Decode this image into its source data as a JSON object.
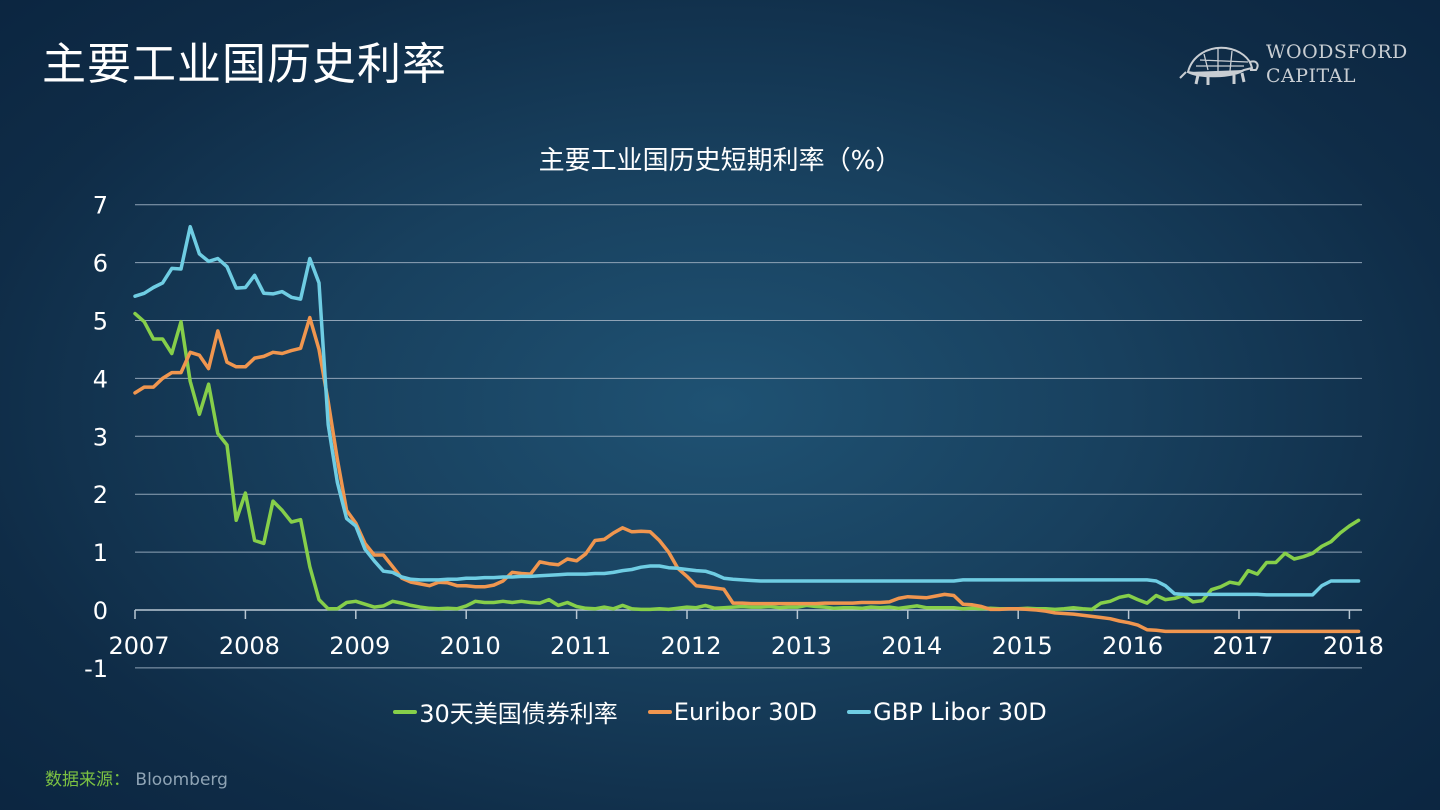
{
  "page": {
    "title": "主要工业国历史利率"
  },
  "logo": {
    "line1": "WOODSFORD",
    "line2": "CAPITAL",
    "icon": "tortoise-icon"
  },
  "footer": {
    "source_label": "数据来源：",
    "source_value": "Bloomberg"
  },
  "colors": {
    "background": "#123454",
    "grid": "#8fa3b6",
    "us": "#86cf4a",
    "euribor": "#f0964f",
    "gbp": "#6fcde3",
    "source_label": "#7cc242"
  },
  "chart_data": {
    "type": "line",
    "title": "主要工业国历史短期利率（%）",
    "xlabel": "",
    "ylabel": "",
    "ylim": [
      -1,
      7
    ],
    "yticks": [
      7,
      6,
      5,
      4,
      3,
      2,
      1,
      0,
      -1
    ],
    "xticks": [
      "2007",
      "2008",
      "2009",
      "2010",
      "2011",
      "2012",
      "2013",
      "2014",
      "2015",
      "2016",
      "2017",
      "2018"
    ],
    "xrange": [
      2007.0,
      2018.2
    ],
    "grid": true,
    "legend_position": "bottom",
    "frequency": "monthly",
    "x_start": 2007.0,
    "x_step": 0.08333,
    "series": [
      {
        "name": "30天美国债券利率",
        "color": "#86cf4a",
        "values": [
          5.12,
          4.98,
          4.68,
          4.68,
          4.43,
          4.98,
          3.95,
          3.38,
          3.9,
          3.05,
          2.85,
          1.55,
          2.02,
          1.2,
          1.15,
          1.88,
          1.72,
          1.52,
          1.56,
          0.75,
          0.18,
          0.02,
          0.02,
          0.13,
          0.15,
          0.1,
          0.05,
          0.07,
          0.15,
          0.12,
          0.08,
          0.05,
          0.03,
          0.02,
          0.03,
          0.02,
          0.07,
          0.15,
          0.13,
          0.13,
          0.15,
          0.13,
          0.15,
          0.13,
          0.12,
          0.18,
          0.08,
          0.13,
          0.06,
          0.03,
          0.02,
          0.05,
          0.02,
          0.08,
          0.02,
          0.01,
          0.01,
          0.02,
          0.01,
          0.03,
          0.05,
          0.04,
          0.08,
          0.03,
          0.04,
          0.05,
          0.06,
          0.05,
          0.05,
          0.06,
          0.04,
          0.05,
          0.05,
          0.08,
          0.06,
          0.05,
          0.03,
          0.04,
          0.04,
          0.03,
          0.05,
          0.04,
          0.05,
          0.03,
          0.05,
          0.07,
          0.04,
          0.04,
          0.04,
          0.04,
          0.02,
          0.03,
          0.02,
          0.03,
          0.02,
          0.02,
          0.02,
          0.03,
          0.02,
          0.02,
          0.01,
          0.02,
          0.04,
          0.02,
          0.01,
          0.12,
          0.15,
          0.22,
          0.25,
          0.18,
          0.12,
          0.25,
          0.18,
          0.2,
          0.25,
          0.14,
          0.16,
          0.35,
          0.4,
          0.48,
          0.45,
          0.68,
          0.62,
          0.82,
          0.82,
          0.98,
          0.88,
          0.92,
          0.98,
          1.1,
          1.18,
          1.33,
          1.45,
          1.55
        ]
      },
      {
        "name": "Euribor 30D",
        "color": "#f0964f",
        "values": [
          3.75,
          3.85,
          3.85,
          4.0,
          4.1,
          4.1,
          4.45,
          4.4,
          4.17,
          4.82,
          4.28,
          4.2,
          4.2,
          4.35,
          4.38,
          4.45,
          4.43,
          4.48,
          4.52,
          5.05,
          4.5,
          3.6,
          2.6,
          1.72,
          1.5,
          1.15,
          0.95,
          0.95,
          0.75,
          0.55,
          0.48,
          0.45,
          0.42,
          0.48,
          0.47,
          0.42,
          0.42,
          0.4,
          0.4,
          0.43,
          0.5,
          0.65,
          0.63,
          0.62,
          0.83,
          0.8,
          0.78,
          0.88,
          0.85,
          0.97,
          1.2,
          1.22,
          1.33,
          1.42,
          1.35,
          1.36,
          1.35,
          1.2,
          1.0,
          0.72,
          0.58,
          0.42,
          0.4,
          0.38,
          0.36,
          0.12,
          0.12,
          0.11,
          0.11,
          0.11,
          0.11,
          0.11,
          0.11,
          0.11,
          0.11,
          0.12,
          0.12,
          0.12,
          0.12,
          0.13,
          0.13,
          0.13,
          0.14,
          0.2,
          0.23,
          0.22,
          0.21,
          0.24,
          0.27,
          0.25,
          0.1,
          0.09,
          0.06,
          0.01,
          0.01,
          0.02,
          0.02,
          0.01,
          0.0,
          -0.02,
          -0.05,
          -0.06,
          -0.07,
          -0.09,
          -0.11,
          -0.13,
          -0.15,
          -0.19,
          -0.22,
          -0.26,
          -0.34,
          -0.35,
          -0.37,
          -0.37,
          -0.37,
          -0.37,
          -0.37,
          -0.37,
          -0.37,
          -0.37,
          -0.37,
          -0.37,
          -0.37,
          -0.37,
          -0.37,
          -0.37,
          -0.37,
          -0.37,
          -0.37,
          -0.37,
          -0.37,
          -0.37,
          -0.37,
          -0.37
        ]
      },
      {
        "name": "GBP Libor 30D",
        "color": "#6fcde3",
        "values": [
          5.42,
          5.47,
          5.57,
          5.65,
          5.9,
          5.89,
          6.62,
          6.15,
          6.02,
          6.07,
          5.93,
          5.56,
          5.57,
          5.78,
          5.47,
          5.46,
          5.5,
          5.4,
          5.37,
          6.07,
          5.65,
          3.2,
          2.2,
          1.58,
          1.45,
          1.05,
          0.85,
          0.67,
          0.65,
          0.57,
          0.53,
          0.52,
          0.52,
          0.52,
          0.53,
          0.53,
          0.55,
          0.55,
          0.56,
          0.56,
          0.57,
          0.57,
          0.58,
          0.58,
          0.59,
          0.6,
          0.61,
          0.62,
          0.62,
          0.62,
          0.63,
          0.63,
          0.65,
          0.68,
          0.7,
          0.74,
          0.76,
          0.76,
          0.73,
          0.72,
          0.7,
          0.68,
          0.67,
          0.62,
          0.55,
          0.53,
          0.52,
          0.51,
          0.5,
          0.5,
          0.5,
          0.5,
          0.5,
          0.5,
          0.5,
          0.5,
          0.5,
          0.5,
          0.5,
          0.5,
          0.5,
          0.5,
          0.5,
          0.5,
          0.5,
          0.5,
          0.5,
          0.5,
          0.5,
          0.5,
          0.52,
          0.52,
          0.52,
          0.52,
          0.52,
          0.52,
          0.52,
          0.52,
          0.52,
          0.52,
          0.52,
          0.52,
          0.52,
          0.52,
          0.52,
          0.52,
          0.52,
          0.52,
          0.52,
          0.52,
          0.52,
          0.5,
          0.42,
          0.28,
          0.27,
          0.27,
          0.27,
          0.27,
          0.27,
          0.27,
          0.27,
          0.27,
          0.27,
          0.26,
          0.26,
          0.26,
          0.26,
          0.26,
          0.26,
          0.42,
          0.5,
          0.5,
          0.5,
          0.5
        ]
      }
    ]
  }
}
